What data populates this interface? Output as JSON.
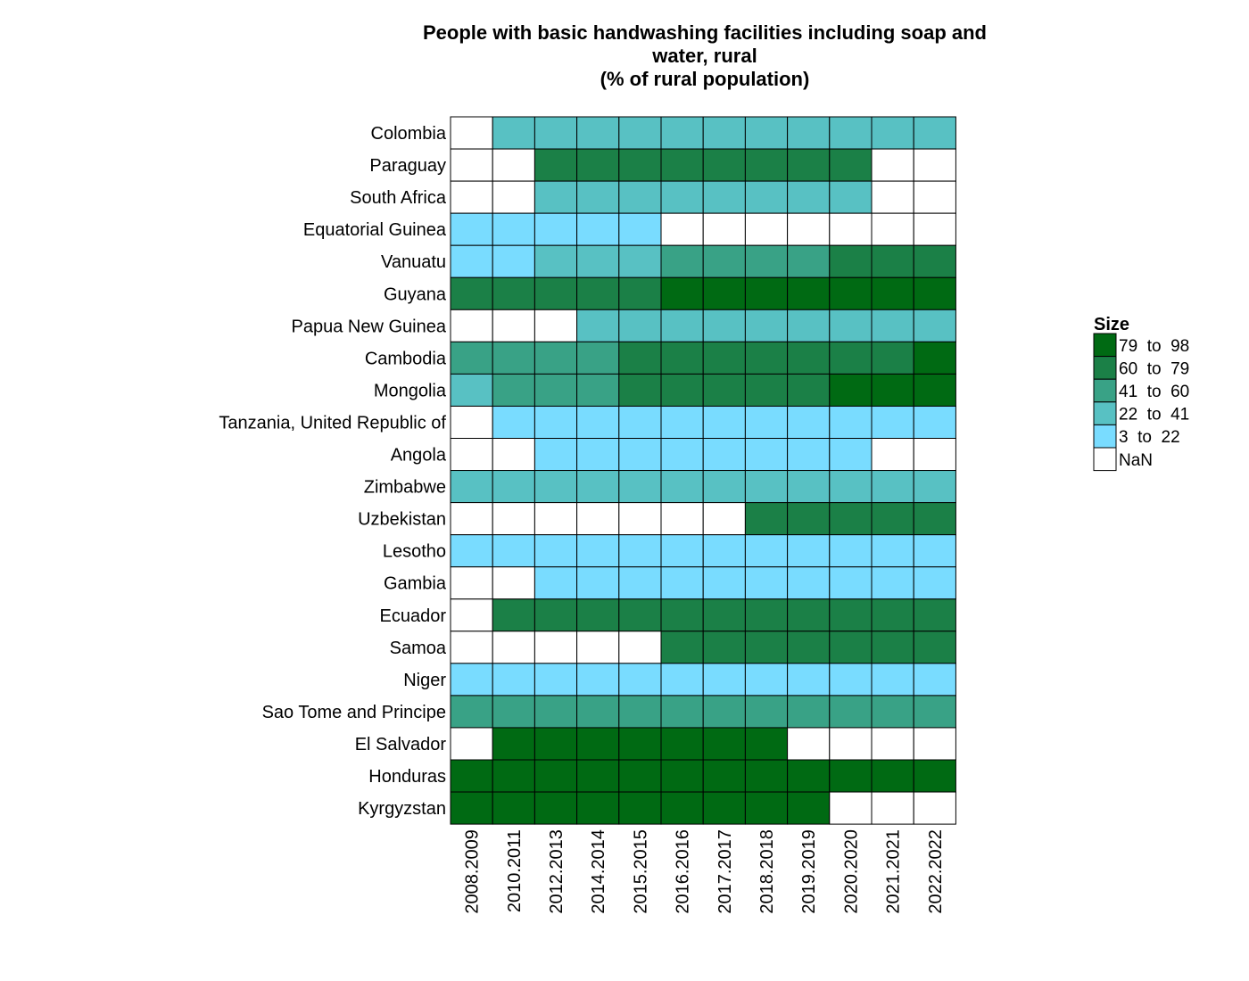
{
  "chart_data": {
    "type": "heatmap",
    "title_lines": [
      "People with basic handwashing facilities including soap and",
      "water, rural",
      "(% of rural population)"
    ],
    "x": [
      "2008.2009",
      "2010.2011",
      "2012.2013",
      "2014.2014",
      "2015.2015",
      "2016.2016",
      "2017.2017",
      "2018.2018",
      "2019.2019",
      "2020.2020",
      "2021.2021",
      "2022.2022"
    ],
    "y": [
      "Colombia",
      "Paraguay",
      "South Africa",
      "Equatorial Guinea",
      "Vanuatu",
      "Guyana",
      "Papua New Guinea",
      "Cambodia",
      "Mongolia",
      "Tanzania, United Republic of",
      "Angola",
      "Zimbabwe",
      "Uzbekistan",
      "Lesotho",
      "Gambia",
      "Ecuador",
      "Samoa",
      "Niger",
      "Sao Tome and Principe",
      "El Salvador",
      "Honduras",
      "Kyrgyzstan"
    ],
    "values": [
      [
        null,
        35,
        35,
        35,
        35,
        35,
        35,
        35,
        35,
        35,
        35,
        35
      ],
      [
        null,
        null,
        70,
        70,
        70,
        70,
        70,
        70,
        70,
        70,
        null,
        null
      ],
      [
        null,
        null,
        32,
        32,
        32,
        32,
        32,
        32,
        32,
        32,
        null,
        null
      ],
      [
        10,
        10,
        10,
        10,
        10,
        null,
        null,
        null,
        null,
        null,
        null,
        null
      ],
      [
        12,
        12,
        30,
        32,
        34,
        45,
        46,
        48,
        50,
        62,
        64,
        66
      ],
      [
        70,
        70,
        70,
        70,
        72,
        80,
        81,
        82,
        82,
        83,
        83,
        84
      ],
      [
        null,
        null,
        null,
        30,
        30,
        30,
        30,
        30,
        30,
        30,
        30,
        30
      ],
      [
        50,
        50,
        50,
        52,
        62,
        63,
        64,
        65,
        66,
        67,
        68,
        80
      ],
      [
        38,
        44,
        46,
        48,
        62,
        64,
        66,
        68,
        70,
        80,
        81,
        82
      ],
      [
        null,
        8,
        8,
        8,
        8,
        8,
        8,
        8,
        8,
        8,
        8,
        8
      ],
      [
        null,
        null,
        12,
        12,
        12,
        12,
        12,
        12,
        12,
        12,
        null,
        null
      ],
      [
        35,
        35,
        35,
        35,
        35,
        35,
        35,
        35,
        35,
        35,
        35,
        35
      ],
      [
        null,
        null,
        null,
        null,
        null,
        null,
        null,
        70,
        70,
        70,
        70,
        70
      ],
      [
        10,
        10,
        10,
        10,
        10,
        10,
        10,
        10,
        10,
        10,
        10,
        10
      ],
      [
        null,
        null,
        14,
        14,
        14,
        14,
        14,
        14,
        14,
        14,
        14,
        14
      ],
      [
        null,
        70,
        70,
        70,
        70,
        70,
        70,
        70,
        70,
        70,
        70,
        70
      ],
      [
        null,
        null,
        null,
        null,
        null,
        70,
        70,
        70,
        70,
        70,
        70,
        70
      ],
      [
        12,
        12,
        12,
        12,
        12,
        12,
        12,
        12,
        12,
        12,
        12,
        12
      ],
      [
        50,
        50,
        50,
        50,
        50,
        50,
        50,
        50,
        50,
        50,
        50,
        50
      ],
      [
        null,
        88,
        88,
        88,
        88,
        88,
        88,
        88,
        null,
        null,
        null,
        null
      ],
      [
        85,
        85,
        85,
        85,
        85,
        85,
        85,
        85,
        85,
        85,
        85,
        85
      ],
      [
        90,
        90,
        90,
        90,
        90,
        90,
        90,
        90,
        90,
        null,
        null,
        null
      ]
    ],
    "legend": {
      "title": "Size",
      "placement": "right",
      "bins": [
        {
          "label": "79  to  98",
          "min": 79,
          "max": 98,
          "color": "#006a13"
        },
        {
          "label": "60  to  79",
          "min": 60,
          "max": 79,
          "color": "#1b8047"
        },
        {
          "label": "41  to  60",
          "min": 41,
          "max": 60,
          "color": "#39a286"
        },
        {
          "label": "22  to  41",
          "min": 22,
          "max": 41,
          "color": "#58c1c3"
        },
        {
          "label": "3  to  22",
          "min": 3,
          "max": 22,
          "color": "#79dcff"
        },
        {
          "label": "NaN",
          "min": null,
          "max": null,
          "color": "#ffffff"
        }
      ]
    }
  }
}
